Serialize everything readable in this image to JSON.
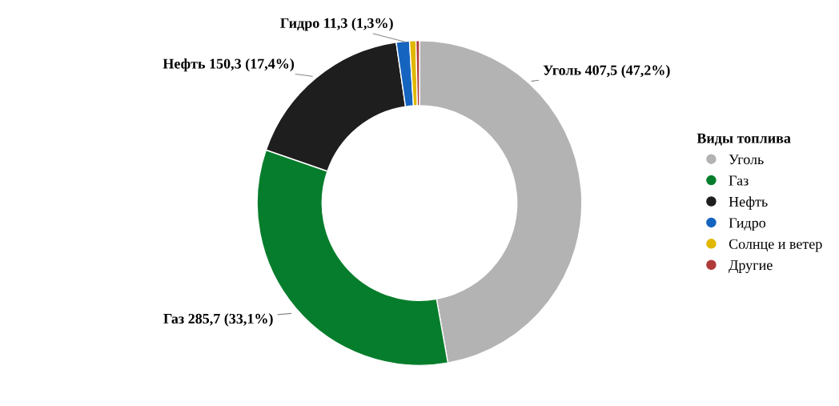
{
  "chart_data": {
    "type": "donut",
    "legend_title": "Виды топлива",
    "legend": "right",
    "marker": "circle",
    "categories": [
      "Уголь",
      "Газ",
      "Нефть",
      "Гидро",
      "Солнце и ветер",
      "Другие"
    ],
    "values": [
      407.5,
      285.7,
      150.3,
      11.3,
      5.5,
      3.0
    ],
    "colors": [
      "#b3b3b3",
      "#067d2c",
      "#1e1e1e",
      "#1565c0",
      "#e0b800",
      "#b03a3a"
    ],
    "value_labels": [
      "Уголь 407,5 (47,2%)",
      "Газ 285,7 (33,1%)",
      "Нефть 150,3 (17,4%)",
      "Гидро 11,3 (1,3%)",
      null,
      null
    ]
  }
}
